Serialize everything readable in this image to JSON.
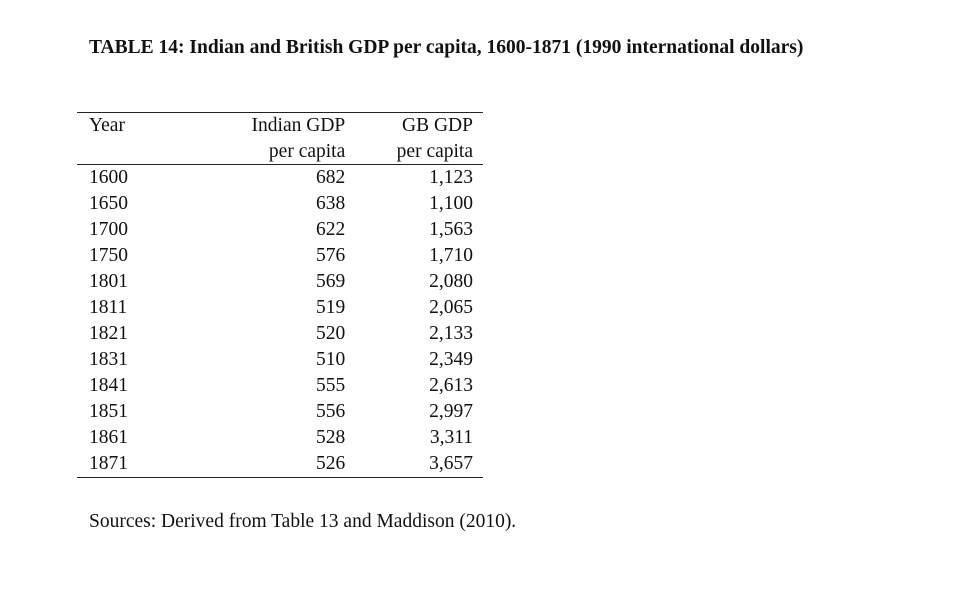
{
  "caption": "TABLE 14: Indian and British GDP per capita, 1600-1871 (1990 international dollars)",
  "table": {
    "headers": {
      "year": "Year",
      "indian_line1": "Indian GDP",
      "indian_line2": "per capita",
      "gb_line1": "GB GDP",
      "gb_line2": "per capita"
    },
    "rows": [
      {
        "year": "1600",
        "indian": "682",
        "gb": "1,123"
      },
      {
        "year": "1650",
        "indian": "638",
        "gb": "1,100"
      },
      {
        "year": "1700",
        "indian": "622",
        "gb": "1,563"
      },
      {
        "year": "1750",
        "indian": "576",
        "gb": "1,710"
      },
      {
        "year": "1801",
        "indian": "569",
        "gb": "2,080"
      },
      {
        "year": "1811",
        "indian": "519",
        "gb": "2,065"
      },
      {
        "year": "1821",
        "indian": "520",
        "gb": "2,133"
      },
      {
        "year": "1831",
        "indian": "510",
        "gb": "2,349"
      },
      {
        "year": "1841",
        "indian": "555",
        "gb": "2,613"
      },
      {
        "year": "1851",
        "indian": "556",
        "gb": "2,997"
      },
      {
        "year": "1861",
        "indian": "528",
        "gb": "3,311"
      },
      {
        "year": "1871",
        "indian": "526",
        "gb": "3,657"
      }
    ]
  },
  "sources": "Sources: Derived from Table 13 and Maddison (2010)."
}
